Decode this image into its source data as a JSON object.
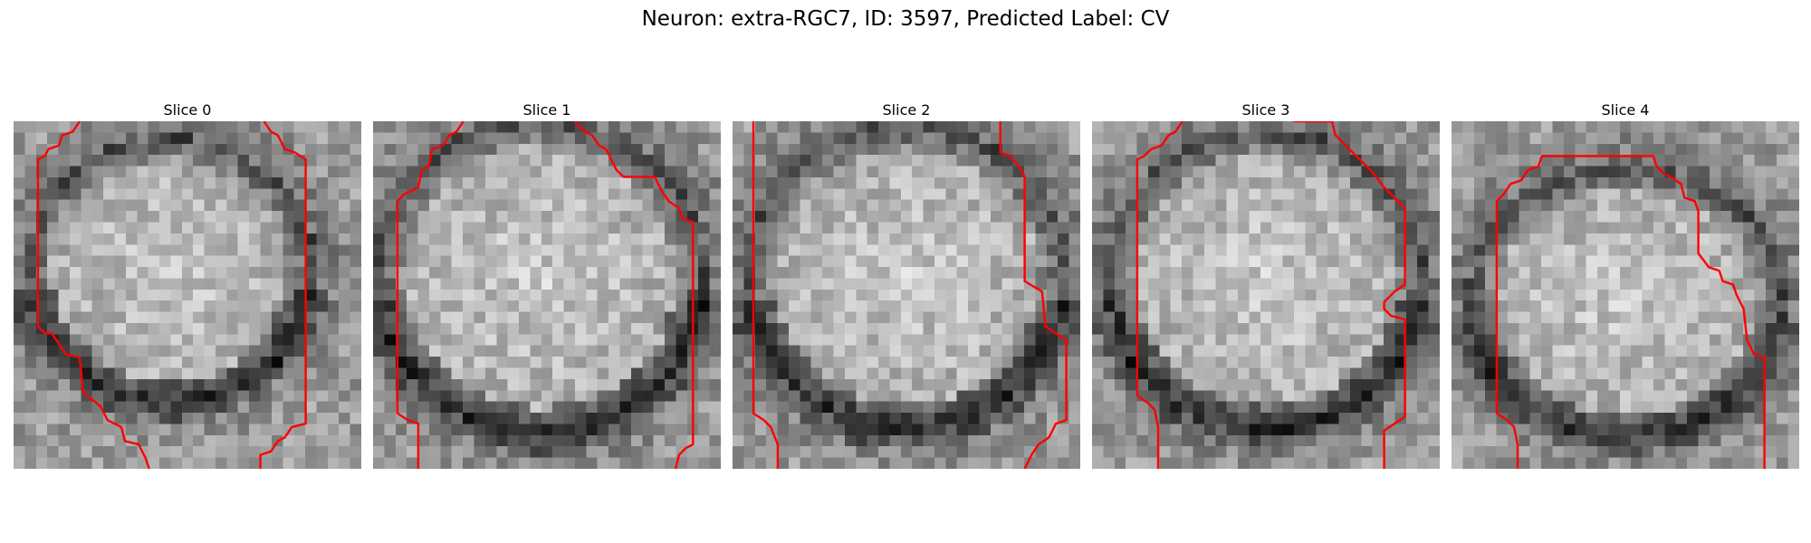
{
  "figure": {
    "title": "Neuron: extra-RGC7, ID: 3597, Predicted Label: CV"
  },
  "panels": [
    {
      "title": "Slice 0",
      "seed": 11
    },
    {
      "title": "Slice 1",
      "seed": 23
    },
    {
      "title": "Slice 2",
      "seed": 37
    },
    {
      "title": "Slice 3",
      "seed": 41
    },
    {
      "title": "Slice 4",
      "seed": 59
    }
  ],
  "colors": {
    "contour": "#ff0000"
  }
}
